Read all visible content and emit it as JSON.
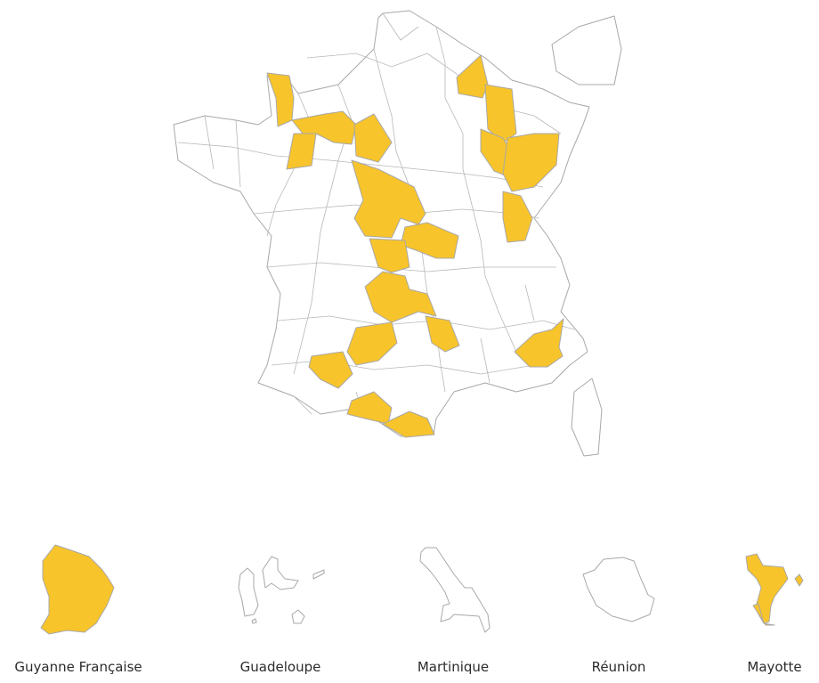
{
  "map": {
    "highlight_color": "#f7c42b",
    "border_color": "#a8a8a8",
    "base_color": "#ffffff"
  },
  "overseas": [
    {
      "label": "Guyanne Française",
      "highlighted": true
    },
    {
      "label": "Guadeloupe",
      "highlighted": false
    },
    {
      "label": "Martinique",
      "highlighted": false
    },
    {
      "label": "Réunion",
      "highlighted": false
    },
    {
      "label": "Mayotte",
      "highlighted": true
    }
  ]
}
